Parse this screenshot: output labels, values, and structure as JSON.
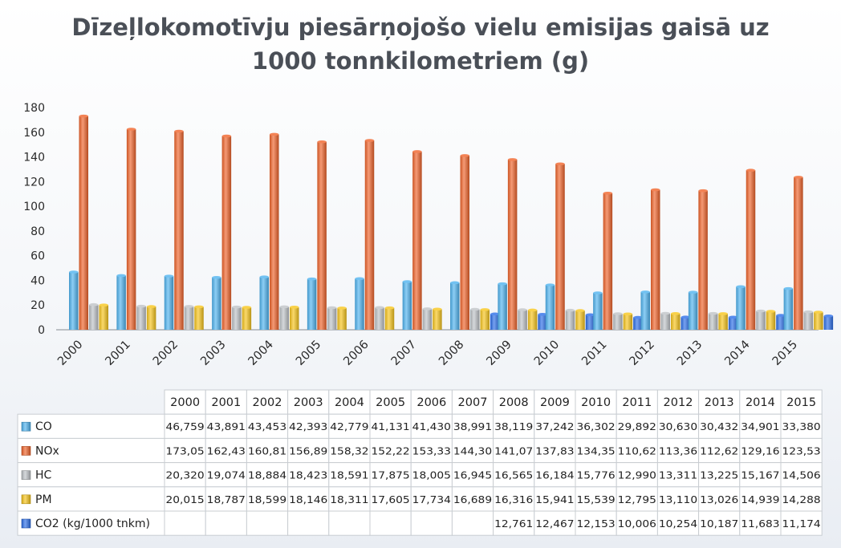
{
  "chart_data": {
    "type": "bar",
    "title_lines": [
      "Dīzeļlokomotīvju piesārņojošo vielu emisijas gaisā uz",
      "1000 tonnkilometriem (g)"
    ],
    "categories": [
      "2000",
      "2001",
      "2002",
      "2003",
      "2004",
      "2005",
      "2006",
      "2007",
      "2008",
      "2009",
      "2010",
      "2011",
      "2012",
      "2013",
      "2014",
      "2015"
    ],
    "y_ticks": [
      "180",
      "160",
      "140",
      "120",
      "100",
      "80",
      "60",
      "40",
      "20",
      "0"
    ],
    "ylim": [
      0,
      180
    ],
    "legend_position": "table-below",
    "series": [
      {
        "name": "CO",
        "color": "#4fb3ef",
        "values": [
          46.759,
          43.891,
          43.453,
          42.393,
          42.779,
          41.131,
          41.43,
          38.991,
          38.119,
          37.242,
          36.302,
          29.892,
          30.63,
          30.432,
          34.901,
          33.38
        ],
        "labels": [
          "46,759",
          "43,891",
          "43,453",
          "42,393",
          "42,779",
          "41,131",
          "41,430",
          "38,991",
          "38,119",
          "37,242",
          "36,302",
          "29,892",
          "30,630",
          "30,432",
          "34,901",
          "33,380"
        ]
      },
      {
        "name": "NOx",
        "color": "#f0642a",
        "values": [
          173.05,
          162.43,
          160.81,
          156.89,
          158.32,
          152.22,
          153.33,
          144.3,
          141.07,
          137.83,
          134.35,
          110.62,
          113.36,
          112.62,
          129.16,
          123.53
        ],
        "labels": [
          "173,05",
          "162,43",
          "160,81",
          "156,89",
          "158,32",
          "152,22",
          "153,33",
          "144,30",
          "141,07",
          "137,83",
          "134,35",
          "110,62",
          "113,36",
          "112,62",
          "129,16",
          "123,53"
        ]
      },
      {
        "name": "HC",
        "color": "#bfc3c7",
        "values": [
          20.32,
          19.074,
          18.884,
          18.423,
          18.591,
          17.875,
          18.005,
          16.945,
          16.565,
          16.184,
          15.776,
          12.99,
          13.311,
          13.225,
          15.167,
          14.506
        ],
        "labels": [
          "20,320",
          "19,074",
          "18,884",
          "18,423",
          "18,591",
          "17,875",
          "18,005",
          "16,945",
          "16,565",
          "16,184",
          "15,776",
          "12,990",
          "13,311",
          "13,225",
          "15,167",
          "14,506"
        ]
      },
      {
        "name": "PM",
        "color": "#f7c51c",
        "values": [
          20.015,
          18.787,
          18.599,
          18.146,
          18.311,
          17.605,
          17.734,
          16.689,
          16.316,
          15.941,
          15.539,
          12.795,
          13.11,
          13.026,
          14.939,
          14.288
        ],
        "labels": [
          "20,015",
          "18,787",
          "18,599",
          "18,146",
          "18,311",
          "17,605",
          "17,734",
          "16,689",
          "16,316",
          "15,941",
          "15,539",
          "12,795",
          "13,110",
          "13,026",
          "14,939",
          "14,288"
        ]
      },
      {
        "name": "CO2 (kg/1000 tnkm)",
        "color": "#2c6ee8",
        "values": [
          null,
          null,
          null,
          null,
          null,
          null,
          null,
          null,
          12.761,
          12.467,
          12.153,
          10.006,
          10.254,
          10.187,
          11.683,
          11.174
        ],
        "labels": [
          "",
          "",
          "",
          "",
          "",
          "",
          "",
          "",
          "12,761",
          "12,467",
          "12,153",
          "10,006",
          "10,254",
          "10,187",
          "11,683",
          "11,174"
        ]
      }
    ]
  }
}
